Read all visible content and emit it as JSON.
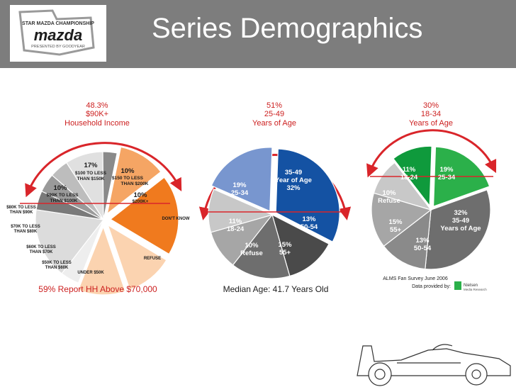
{
  "header": {
    "title": "Series Demographics",
    "logo": {
      "top": "STAR MAZDA CHAMPIONSHIP",
      "brand": "mazda",
      "bottom": "PRESENTED BY GOODYEAR"
    }
  },
  "colors": {
    "header_bg": "#7d7d7d",
    "orange_dark": "#f07a1e",
    "orange_mid": "#f5a564",
    "orange_light": "#fbd3b0",
    "blue": "#1452a3",
    "blue_light": "#7896cf",
    "green_dark": "#0f9a3c",
    "green": "#2bb04a",
    "red_title": "#cc1f1f",
    "arc_red": "#d9252a"
  },
  "chart_data": [
    {
      "type": "pie",
      "title_lines": [
        "48.3%",
        "$90K+",
        "Household Income"
      ],
      "slices": [
        {
          "lines": [
            "17%",
            "$100 TO LESS",
            "THAN $150K"
          ],
          "value": 17
        },
        {
          "lines": [
            "10%",
            "$150 TO LESS",
            "THAN $200K"
          ],
          "value": 10
        },
        {
          "lines": [
            "10%",
            "$200K+"
          ],
          "value": 10
        },
        {
          "lines": [
            "DON'T KNOW"
          ],
          "value": 4
        },
        {
          "lines": [
            "REFUSE"
          ],
          "value": 15
        },
        {
          "lines": [
            "UNDER $50K"
          ],
          "value": 4
        },
        {
          "lines": [
            "$50K TO LESS",
            "THAN $60K"
          ],
          "value": 4
        },
        {
          "lines": [
            "$60K TO LESS",
            "THAN $70K"
          ],
          "value": 4
        },
        {
          "lines": [
            "$70K TO LESS",
            "THAN $80K"
          ],
          "value": 8
        },
        {
          "lines": [
            "$80K TO LESS",
            "THAN $90K"
          ],
          "value": 3
        },
        {
          "lines": [
            "10%",
            "$90K TO LESS",
            "THAN $100K"
          ],
          "value": 10
        }
      ],
      "footer": "59% Report HH Above $70,000"
    },
    {
      "type": "pie",
      "title_lines": [
        "51%",
        "25-49",
        "Years of Age"
      ],
      "slices": [
        {
          "lines": [
            "35-49",
            "Year of Age",
            "32%"
          ],
          "value": 32
        },
        {
          "lines": [
            "13%",
            "50-54"
          ],
          "value": 13
        },
        {
          "lines": [
            "15%",
            "55+"
          ],
          "value": 15
        },
        {
          "lines": [
            "10%",
            "Refuse"
          ],
          "value": 10
        },
        {
          "lines": [
            "11%",
            "18-24"
          ],
          "value": 11
        },
        {
          "lines": [
            "19%",
            "25-34"
          ],
          "value": 19
        }
      ],
      "footer": "Median Age: 41.7 Years Old"
    },
    {
      "type": "pie",
      "title_lines": [
        "30%",
        "18-34",
        "Years of Age"
      ],
      "slices": [
        {
          "lines": [
            "19%",
            "25-34"
          ],
          "value": 19
        },
        {
          "lines": [
            "32%",
            "35-49",
            "Years of Age"
          ],
          "value": 32
        },
        {
          "lines": [
            "13%",
            "50-54"
          ],
          "value": 13
        },
        {
          "lines": [
            "15%",
            "55+"
          ],
          "value": 15
        },
        {
          "lines": [
            "10%",
            "Refuse"
          ],
          "value": 10
        },
        {
          "lines": [
            "11%",
            "18-24"
          ],
          "value": 11
        }
      ],
      "source": "ALMS Fan Survey June 2006",
      "provider_label": "Data provided by:",
      "provider_name": "Nielsen",
      "provider_sub": "Media Research"
    }
  ]
}
